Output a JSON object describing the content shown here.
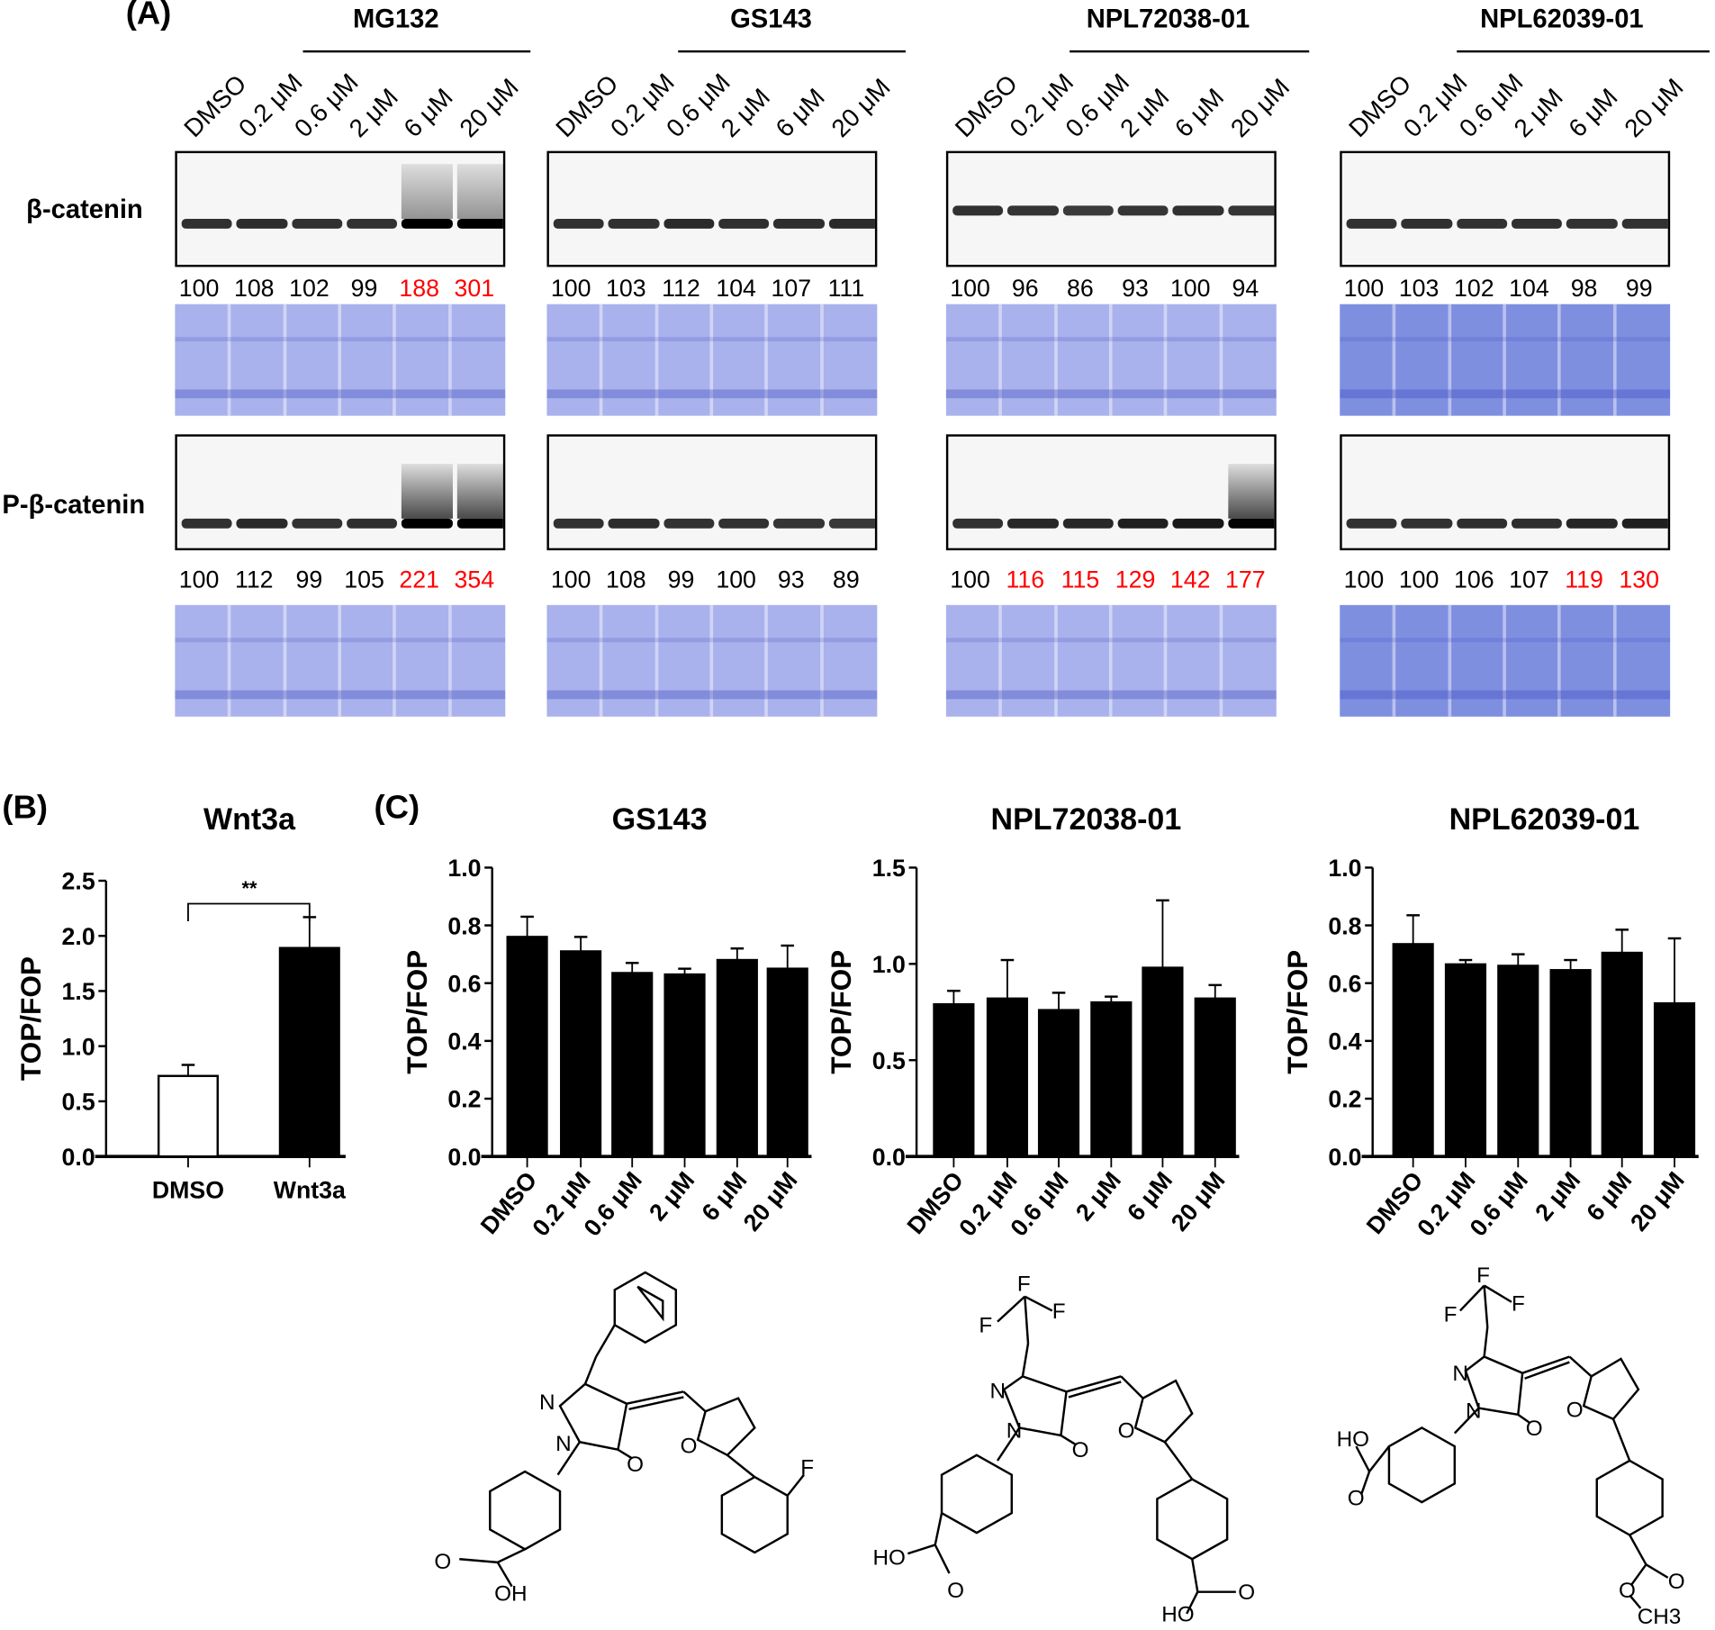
{
  "panel_labels": {
    "a": "(A)",
    "b": "(B)",
    "c": "(C)"
  },
  "row_labels": {
    "beta_catenin": "β-catenin",
    "p_beta_catenin": "P-β-catenin"
  },
  "lanes": [
    "DMSO",
    "0.2 μM",
    "0.6 μM",
    "2 μM",
    "6 μM",
    "20 μM"
  ],
  "blot_groups": [
    {
      "name": "MG132",
      "beta": [
        "100",
        "108",
        "102",
        "99",
        "188",
        "301"
      ],
      "beta_red": [
        false,
        false,
        false,
        false,
        true,
        true
      ],
      "pbeta": [
        "100",
        "112",
        "99",
        "105",
        "221",
        "354"
      ],
      "pbeta_red": [
        false,
        false,
        false,
        false,
        true,
        true
      ]
    },
    {
      "name": "GS143",
      "beta": [
        "100",
        "103",
        "112",
        "104",
        "107",
        "111"
      ],
      "beta_red": [
        false,
        false,
        false,
        false,
        false,
        false
      ],
      "pbeta": [
        "100",
        "108",
        "99",
        "100",
        "93",
        "89"
      ],
      "pbeta_red": [
        false,
        false,
        false,
        false,
        false,
        false
      ]
    },
    {
      "name": "NPL72038-01",
      "beta": [
        "100",
        "96",
        "86",
        "93",
        "100",
        "94"
      ],
      "beta_red": [
        false,
        false,
        false,
        false,
        false,
        false
      ],
      "pbeta": [
        "100",
        "116",
        "115",
        "129",
        "142",
        "177"
      ],
      "pbeta_red": [
        false,
        true,
        true,
        true,
        true,
        true
      ]
    },
    {
      "name": "NPL62039-01",
      "beta": [
        "100",
        "103",
        "102",
        "104",
        "98",
        "99"
      ],
      "beta_red": [
        false,
        false,
        false,
        false,
        false,
        false
      ],
      "pbeta": [
        "100",
        "100",
        "106",
        "107",
        "119",
        "130"
      ],
      "pbeta_red": [
        false,
        false,
        false,
        false,
        true,
        true
      ]
    }
  ],
  "colors": {
    "highlight": "#ff0000",
    "coomassie": "#a9b2ec",
    "bar": "#000000"
  },
  "chart_data": [
    {
      "type": "bar",
      "title": "Wnt3a",
      "ylabel": "TOP/FOP",
      "xlabel": "",
      "categories": [
        "DMSO",
        "Wnt3a"
      ],
      "values": [
        0.73,
        1.89
      ],
      "error_upper": [
        0.83,
        2.17
      ],
      "fills": [
        "#ffffff",
        "#000000"
      ],
      "ylim": [
        0,
        2.5
      ],
      "yticks": [
        "0.0",
        "0.5",
        "1.0",
        "1.5",
        "2.0",
        "2.5"
      ],
      "annotation": "**"
    },
    {
      "type": "bar",
      "title": "GS143",
      "ylabel": "TOP/FOP",
      "xlabel": "",
      "categories": [
        "DMSO",
        "0.2 μM",
        "0.6 μM",
        "2 μM",
        "6 μM",
        "20 μM"
      ],
      "values": [
        0.76,
        0.71,
        0.635,
        0.63,
        0.68,
        0.65
      ],
      "error_upper": [
        0.83,
        0.76,
        0.67,
        0.65,
        0.72,
        0.73
      ],
      "ylim": [
        0,
        1.0
      ],
      "yticks": [
        "0.0",
        "0.2",
        "0.4",
        "0.6",
        "0.8",
        "1.0"
      ]
    },
    {
      "type": "bar",
      "title": "NPL72038-01",
      "ylabel": "TOP/FOP",
      "xlabel": "",
      "categories": [
        "DMSO",
        "0.2 μM",
        "0.6 μM",
        "2 μM",
        "6 μM",
        "20 μM"
      ],
      "values": [
        0.79,
        0.82,
        0.76,
        0.8,
        0.98,
        0.82
      ],
      "error_upper": [
        0.86,
        1.02,
        0.85,
        0.83,
        1.33,
        0.89
      ],
      "ylim": [
        0,
        1.5
      ],
      "yticks": [
        "0.0",
        "0.5",
        "1.0",
        "1.5"
      ]
    },
    {
      "type": "bar",
      "title": "NPL62039-01",
      "ylabel": "TOP/FOP",
      "xlabel": "",
      "categories": [
        "DMSO",
        "0.2 μM",
        "0.6 μM",
        "2 μM",
        "6 μM",
        "20 μM"
      ],
      "values": [
        0.735,
        0.665,
        0.66,
        0.645,
        0.705,
        0.53
      ],
      "error_upper": [
        0.835,
        0.68,
        0.7,
        0.68,
        0.785,
        0.755
      ],
      "ylim": [
        0,
        1.0
      ],
      "yticks": [
        "0.0",
        "0.2",
        "0.4",
        "0.6",
        "0.8",
        "1.0"
      ]
    }
  ],
  "molecules": [
    {
      "atoms": [
        "N",
        "N",
        "O",
        "O",
        "F",
        "O",
        "OH"
      ]
    },
    {
      "atoms": [
        "F",
        "F",
        "F",
        "N",
        "N",
        "O",
        "O",
        "HO",
        "O",
        "HO",
        "O"
      ]
    },
    {
      "atoms": [
        "F",
        "F",
        "F",
        "N",
        "N",
        "O",
        "O",
        "HO",
        "O",
        "O",
        "O",
        "CH3"
      ]
    }
  ]
}
